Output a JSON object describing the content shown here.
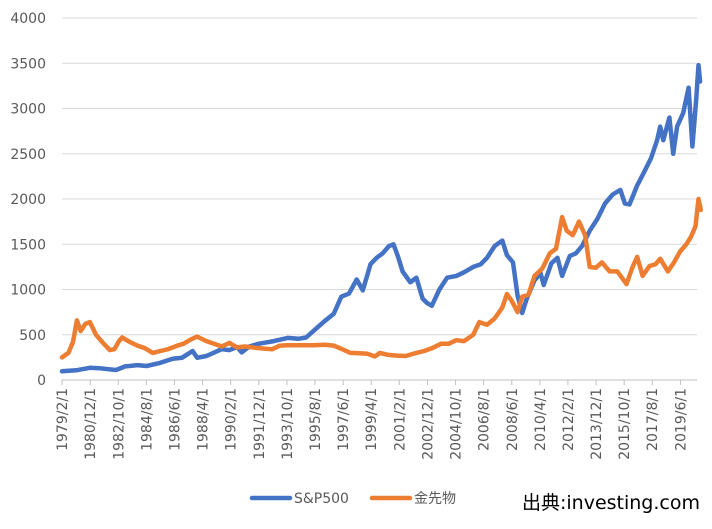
{
  "source_label": "出典:investing.com",
  "chart_data": {
    "type": "line",
    "title": "",
    "xlabel": "",
    "ylabel": "",
    "ylim": [
      0,
      4000
    ],
    "yticks": [
      0,
      500,
      1000,
      1500,
      2000,
      2500,
      3000,
      3500,
      4000
    ],
    "grid": true,
    "legend_position": "bottom",
    "x_range": [
      1979.08,
      2020.5
    ],
    "xtick_labels": [
      "1979/2/1",
      "1980/12/1",
      "1982/10/1",
      "1984/8/1",
      "1986/6/1",
      "1988/4/1",
      "1990/2/1",
      "1991/12/1",
      "1993/10/1",
      "1995/8/1",
      "1997/6/1",
      "1999/4/1",
      "2001/2/1",
      "2002/12/1",
      "2004/10/1",
      "2006/8/1",
      "2008/6/1",
      "2010/4/1",
      "2012/2/1",
      "2013/12/1",
      "2015/10/1",
      "2017/8/1",
      "2019/6/1"
    ],
    "xtick_values": [
      1979.08,
      1980.92,
      1982.75,
      1984.58,
      1986.42,
      1988.25,
      1990.08,
      1991.92,
      1993.75,
      1995.58,
      1997.42,
      1999.25,
      2001.08,
      2002.92,
      2004.75,
      2006.58,
      2008.42,
      2010.25,
      2012.08,
      2013.92,
      2015.75,
      2017.58,
      2019.42
    ],
    "series": [
      {
        "name": "S&P500",
        "color": "#4472C4",
        "points": [
          [
            1979.08,
            96
          ],
          [
            1980.0,
            107
          ],
          [
            1980.9,
            135
          ],
          [
            1981.5,
            130
          ],
          [
            1982.6,
            110
          ],
          [
            1983.2,
            150
          ],
          [
            1984.0,
            165
          ],
          [
            1984.6,
            155
          ],
          [
            1985.5,
            190
          ],
          [
            1986.3,
            235
          ],
          [
            1986.9,
            245
          ],
          [
            1987.6,
            320
          ],
          [
            1987.9,
            245
          ],
          [
            1988.5,
            265
          ],
          [
            1989.5,
            340
          ],
          [
            1990.0,
            330
          ],
          [
            1990.5,
            365
          ],
          [
            1990.8,
            305
          ],
          [
            1991.3,
            370
          ],
          [
            1991.9,
            400
          ],
          [
            1992.9,
            430
          ],
          [
            1993.8,
            465
          ],
          [
            1994.5,
            455
          ],
          [
            1995.0,
            470
          ],
          [
            1995.6,
            560
          ],
          [
            1996.2,
            650
          ],
          [
            1996.8,
            730
          ],
          [
            1997.3,
            920
          ],
          [
            1997.8,
            955
          ],
          [
            1998.3,
            1110
          ],
          [
            1998.7,
            990
          ],
          [
            1999.2,
            1280
          ],
          [
            1999.6,
            1350
          ],
          [
            2000.0,
            1400
          ],
          [
            2000.4,
            1480
          ],
          [
            2000.7,
            1500
          ],
          [
            2001.0,
            1360
          ],
          [
            2001.3,
            1200
          ],
          [
            2001.8,
            1080
          ],
          [
            2002.2,
            1130
          ],
          [
            2002.6,
            900
          ],
          [
            2002.9,
            850
          ],
          [
            2003.2,
            820
          ],
          [
            2003.7,
            1000
          ],
          [
            2004.2,
            1130
          ],
          [
            2004.8,
            1150
          ],
          [
            2005.3,
            1190
          ],
          [
            2005.9,
            1250
          ],
          [
            2006.4,
            1280
          ],
          [
            2006.8,
            1350
          ],
          [
            2007.3,
            1480
          ],
          [
            2007.8,
            1540
          ],
          [
            2008.1,
            1380
          ],
          [
            2008.5,
            1300
          ],
          [
            2008.8,
            930
          ],
          [
            2009.1,
            740
          ],
          [
            2009.4,
            900
          ],
          [
            2009.9,
            1100
          ],
          [
            2010.3,
            1180
          ],
          [
            2010.5,
            1050
          ],
          [
            2011.0,
            1290
          ],
          [
            2011.4,
            1350
          ],
          [
            2011.7,
            1150
          ],
          [
            2012.2,
            1370
          ],
          [
            2012.6,
            1400
          ],
          [
            2013.0,
            1480
          ],
          [
            2013.5,
            1650
          ],
          [
            2014.0,
            1780
          ],
          [
            2014.5,
            1950
          ],
          [
            2015.0,
            2050
          ],
          [
            2015.5,
            2100
          ],
          [
            2015.8,
            1950
          ],
          [
            2016.1,
            1940
          ],
          [
            2016.6,
            2150
          ],
          [
            2017.0,
            2280
          ],
          [
            2017.5,
            2450
          ],
          [
            2017.9,
            2650
          ],
          [
            2018.1,
            2800
          ],
          [
            2018.3,
            2650
          ],
          [
            2018.7,
            2900
          ],
          [
            2018.95,
            2500
          ],
          [
            2019.2,
            2800
          ],
          [
            2019.6,
            2950
          ],
          [
            2019.95,
            3230
          ],
          [
            2020.2,
            2580
          ],
          [
            2020.45,
            3100
          ],
          [
            2020.6,
            3480
          ],
          [
            2020.7,
            3300
          ]
        ]
      },
      {
        "name": "金先物",
        "color": "#ED7D31",
        "points": [
          [
            1979.08,
            250
          ],
          [
            1979.5,
            300
          ],
          [
            1979.8,
            420
          ],
          [
            1980.05,
            660
          ],
          [
            1980.3,
            540
          ],
          [
            1980.6,
            620
          ],
          [
            1980.9,
            640
          ],
          [
            1981.3,
            500
          ],
          [
            1981.7,
            420
          ],
          [
            1982.2,
            330
          ],
          [
            1982.5,
            340
          ],
          [
            1982.8,
            430
          ],
          [
            1983.0,
            470
          ],
          [
            1983.5,
            420
          ],
          [
            1984.0,
            380
          ],
          [
            1984.5,
            350
          ],
          [
            1985.0,
            300
          ],
          [
            1985.5,
            320
          ],
          [
            1986.0,
            340
          ],
          [
            1986.6,
            380
          ],
          [
            1987.0,
            400
          ],
          [
            1987.5,
            450
          ],
          [
            1987.9,
            480
          ],
          [
            1988.5,
            430
          ],
          [
            1989.0,
            400
          ],
          [
            1989.5,
            370
          ],
          [
            1990.0,
            410
          ],
          [
            1990.5,
            360
          ],
          [
            1991.0,
            370
          ],
          [
            1991.5,
            360
          ],
          [
            1992.0,
            350
          ],
          [
            1992.8,
            340
          ],
          [
            1993.3,
            380
          ],
          [
            1993.8,
            385
          ],
          [
            1994.5,
            385
          ],
          [
            1995.5,
            385
          ],
          [
            1996.2,
            390
          ],
          [
            1996.8,
            380
          ],
          [
            1997.3,
            345
          ],
          [
            1997.9,
            300
          ],
          [
            1998.5,
            295
          ],
          [
            1999.0,
            290
          ],
          [
            1999.5,
            260
          ],
          [
            1999.8,
            300
          ],
          [
            2000.3,
            280
          ],
          [
            2000.9,
            270
          ],
          [
            2001.5,
            265
          ],
          [
            2002.2,
            300
          ],
          [
            2002.7,
            320
          ],
          [
            2003.2,
            350
          ],
          [
            2003.8,
            400
          ],
          [
            2004.3,
            400
          ],
          [
            2004.8,
            440
          ],
          [
            2005.3,
            430
          ],
          [
            2005.9,
            500
          ],
          [
            2006.3,
            640
          ],
          [
            2006.8,
            610
          ],
          [
            2007.3,
            680
          ],
          [
            2007.8,
            800
          ],
          [
            2008.1,
            950
          ],
          [
            2008.4,
            880
          ],
          [
            2008.8,
            750
          ],
          [
            2009.1,
            920
          ],
          [
            2009.5,
            940
          ],
          [
            2009.9,
            1150
          ],
          [
            2010.4,
            1230
          ],
          [
            2010.9,
            1400
          ],
          [
            2011.3,
            1450
          ],
          [
            2011.7,
            1800
          ],
          [
            2012.0,
            1650
          ],
          [
            2012.4,
            1600
          ],
          [
            2012.8,
            1750
          ],
          [
            2013.2,
            1600
          ],
          [
            2013.5,
            1250
          ],
          [
            2013.9,
            1240
          ],
          [
            2014.3,
            1300
          ],
          [
            2014.8,
            1200
          ],
          [
            2015.3,
            1200
          ],
          [
            2015.9,
            1060
          ],
          [
            2016.3,
            1250
          ],
          [
            2016.6,
            1360
          ],
          [
            2016.95,
            1150
          ],
          [
            2017.4,
            1260
          ],
          [
            2017.8,
            1280
          ],
          [
            2018.1,
            1340
          ],
          [
            2018.6,
            1200
          ],
          [
            2019.0,
            1300
          ],
          [
            2019.4,
            1420
          ],
          [
            2019.8,
            1500
          ],
          [
            2020.1,
            1580
          ],
          [
            2020.4,
            1700
          ],
          [
            2020.6,
            2000
          ],
          [
            2020.75,
            1880
          ]
        ]
      }
    ]
  }
}
